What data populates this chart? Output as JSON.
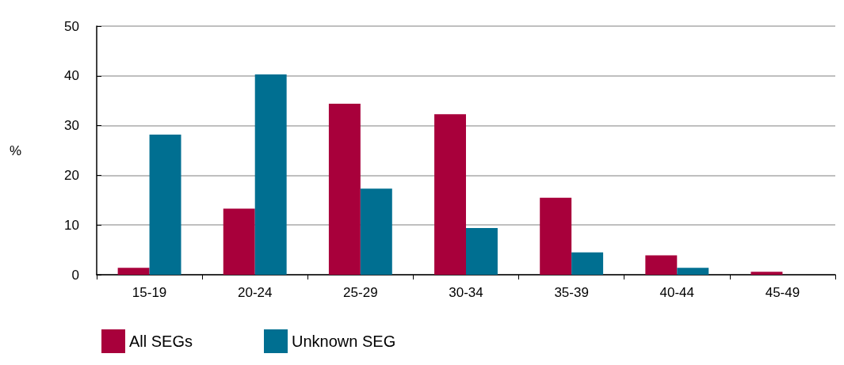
{
  "chart_data": {
    "type": "bar",
    "ylabel": "%",
    "categories": [
      "15-19",
      "20-24",
      "25-29",
      "30-34",
      "35-39",
      "40-44",
      "45-49"
    ],
    "series": [
      {
        "name": "All SEGs",
        "color": "#a8003b",
        "values": [
          1.4,
          13.3,
          34.4,
          32.3,
          15.5,
          3.9,
          0.6
        ]
      },
      {
        "name": "Unknown SEG",
        "color": "#006f91",
        "values": [
          28.2,
          40.3,
          17.3,
          9.4,
          4.5,
          1.4,
          0
        ]
      }
    ],
    "ylim": [
      0,
      50
    ],
    "yticks": [
      0,
      10,
      20,
      30,
      40,
      50
    ],
    "grid": "y",
    "legend": "bottom left"
  }
}
